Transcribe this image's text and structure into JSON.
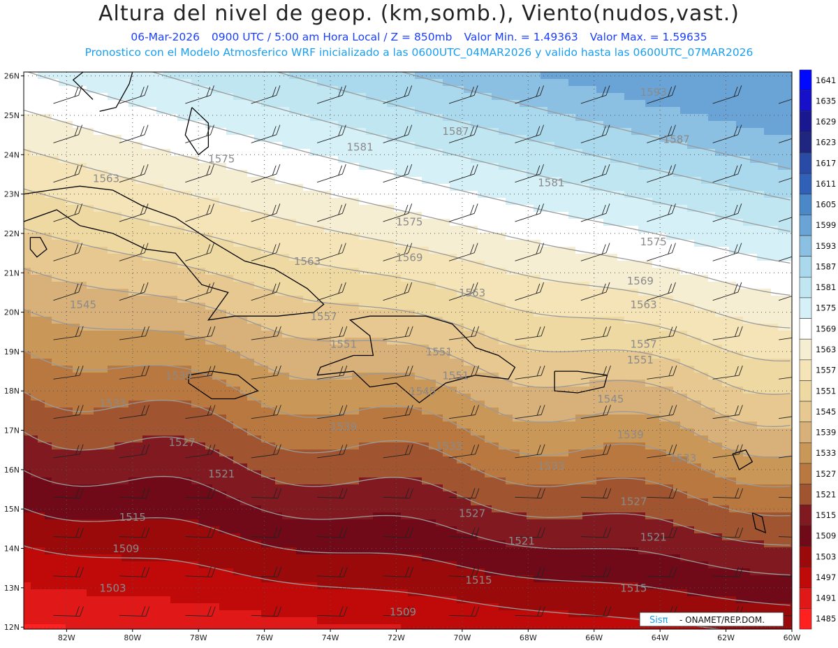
{
  "header": {
    "title": "Altura del nivel de geop. (km,somb.), Viento(nudos,vast.)",
    "date": "06-Mar-2026",
    "time": "0900 UTC / 5:00 am Hora Local / Z = 850mb",
    "min_value": "Valor Min. = 1.49363",
    "max_value": "Valor Max. = 1.59635",
    "model_info": "Pronostico con el Modelo Atmosferico WRF inicializado a las 0600UTC_04MAR2026 y valido hasta las  0600UTC_07MAR2026"
  },
  "axes": {
    "lat_labels": [
      "26N",
      "25N",
      "24N",
      "23N",
      "22N",
      "21N",
      "20N",
      "19N",
      "18N",
      "17N",
      "16N",
      "15N",
      "14N",
      "13N",
      "12N"
    ],
    "lat_values": [
      26,
      25,
      24,
      23,
      22,
      21,
      20,
      19,
      18,
      17,
      16,
      15,
      14,
      13,
      12
    ],
    "lon_labels": [
      "82W",
      "80W",
      "78W",
      "76W",
      "74W",
      "72W",
      "70W",
      "68W",
      "66W",
      "64W",
      "62W",
      "60W"
    ],
    "lon_values": [
      -82,
      -80,
      -78,
      -76,
      -74,
      -72,
      -70,
      -68,
      -66,
      -64,
      -62,
      -60
    ]
  },
  "colorbar": {
    "levels": [
      "1641",
      "1635",
      "1629",
      "1623",
      "1617",
      "1611",
      "1605",
      "1599",
      "1593",
      "1587",
      "1581",
      "1575",
      "1569",
      "1563",
      "1557",
      "1551",
      "1545",
      "1539",
      "1533",
      "1527",
      "1521",
      "1515",
      "1509",
      "1503",
      "1497",
      "1491",
      "1485"
    ],
    "colors": [
      "#0008ff",
      "#1610c8",
      "#1a1890",
      "#1f2680",
      "#2a4aa8",
      "#3060b8",
      "#4a88c8",
      "#6aa4d6",
      "#8cc0e2",
      "#aad8ec",
      "#c0e6f2",
      "#d6f0f8",
      "#ffffff",
      "#f6eed2",
      "#f5e4b8",
      "#efd9a3",
      "#e6c890",
      "#d8b07a",
      "#c99858",
      "#b87840",
      "#a05530",
      "#801a20",
      "#700a18",
      "#9a0a0a",
      "#c00a0a",
      "#e01818",
      "#ff2020"
    ]
  },
  "contours": [
    {
      "level": "1593"
    },
    {
      "level": "1587"
    },
    {
      "level": "1581"
    },
    {
      "level": "1575"
    },
    {
      "level": "1569"
    },
    {
      "level": "1563"
    },
    {
      "level": "1557"
    },
    {
      "level": "1551"
    },
    {
      "level": "1545"
    },
    {
      "level": "1539"
    },
    {
      "level": "1533"
    },
    {
      "level": "1527"
    },
    {
      "level": "1521"
    },
    {
      "level": "1515"
    },
    {
      "level": "1509"
    },
    {
      "level": "1503"
    }
  ],
  "map_labels": [
    {
      "text": "1593",
      "lon": -64.2,
      "lat": 25.5
    },
    {
      "text": "1587",
      "lon": -70.2,
      "lat": 24.5
    },
    {
      "text": "1587",
      "lon": -63.5,
      "lat": 24.3
    },
    {
      "text": "1581",
      "lon": -73.1,
      "lat": 24.1
    },
    {
      "text": "1581",
      "lon": -67.3,
      "lat": 23.2
    },
    {
      "text": "1575",
      "lon": -77.3,
      "lat": 23.8
    },
    {
      "text": "1575",
      "lon": -71.6,
      "lat": 22.2
    },
    {
      "text": "1575",
      "lon": -64.2,
      "lat": 21.7
    },
    {
      "text": "1569",
      "lon": -71.6,
      "lat": 21.3
    },
    {
      "text": "1569",
      "lon": -64.6,
      "lat": 20.7
    },
    {
      "text": "1563",
      "lon": -80.8,
      "lat": 23.3
    },
    {
      "text": "1563",
      "lon": -74.7,
      "lat": 21.2
    },
    {
      "text": "1563",
      "lon": -69.7,
      "lat": 20.4
    },
    {
      "text": "1563",
      "lon": -64.5,
      "lat": 20.1
    },
    {
      "text": "1557",
      "lon": -74.2,
      "lat": 19.8
    },
    {
      "text": "1557",
      "lon": -64.5,
      "lat": 19.1
    },
    {
      "text": "1551",
      "lon": -73.6,
      "lat": 19.1
    },
    {
      "text": "1551",
      "lon": -70.7,
      "lat": 18.9
    },
    {
      "text": "1551",
      "lon": -70.2,
      "lat": 18.3
    },
    {
      "text": "1551",
      "lon": -64.6,
      "lat": 18.7
    },
    {
      "text": "1545",
      "lon": -81.5,
      "lat": 20.1
    },
    {
      "text": "1545",
      "lon": -71.2,
      "lat": 17.9
    },
    {
      "text": "1545",
      "lon": -65.5,
      "lat": 17.7
    },
    {
      "text": "1539",
      "lon": -78.6,
      "lat": 18.3
    },
    {
      "text": "1539",
      "lon": -73.6,
      "lat": 17.0
    },
    {
      "text": "1539",
      "lon": -64.9,
      "lat": 16.8
    },
    {
      "text": "1533",
      "lon": -80.6,
      "lat": 17.6
    },
    {
      "text": "1533",
      "lon": -70.4,
      "lat": 16.5
    },
    {
      "text": "1533",
      "lon": -67.3,
      "lat": 16.0
    },
    {
      "text": "1533",
      "lon": -63.3,
      "lat": 16.2
    },
    {
      "text": "1527",
      "lon": -78.5,
      "lat": 16.6
    },
    {
      "text": "1527",
      "lon": -69.7,
      "lat": 14.8
    },
    {
      "text": "1527",
      "lon": -64.8,
      "lat": 15.1
    },
    {
      "text": "1521",
      "lon": -77.3,
      "lat": 15.8
    },
    {
      "text": "1521",
      "lon": -68.2,
      "lat": 14.1
    },
    {
      "text": "1521",
      "lon": -64.2,
      "lat": 14.2
    },
    {
      "text": "1515",
      "lon": -80.0,
      "lat": 14.7
    },
    {
      "text": "1515",
      "lon": -69.5,
      "lat": 13.1
    },
    {
      "text": "1515",
      "lon": -64.8,
      "lat": 12.9
    },
    {
      "text": "1509",
      "lon": -80.2,
      "lat": 13.9
    },
    {
      "text": "1509",
      "lon": -71.8,
      "lat": 12.3
    },
    {
      "text": "1503",
      "lon": -80.6,
      "lat": 12.9
    }
  ],
  "wind": {
    "spacing_deg": 2,
    "note": ""
  },
  "credit": {
    "logo": "Sisπ",
    "text": "- ONAMET/REP.DOM."
  },
  "map_colors": {
    "grid": "#555555",
    "coast": "#000000",
    "contour": "#9a9a9a",
    "label": "#8a8a8a",
    "barb": "#222222"
  }
}
